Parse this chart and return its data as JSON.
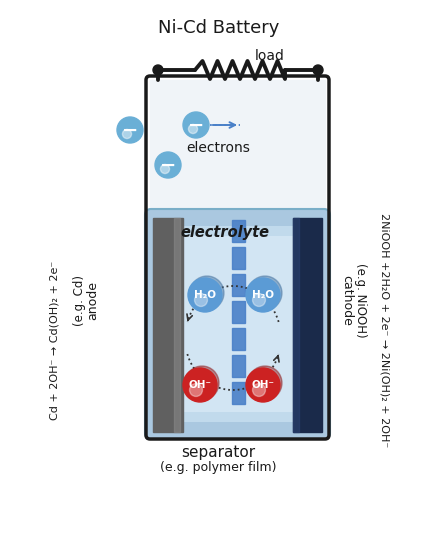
{
  "title": "Ni-Cd Battery",
  "title_fontsize": 13,
  "bg_color": "#ffffff",
  "circuit_color": "#1a1a1a",
  "box_edge_color": "#1a1a1a",
  "box_upper_fill": "#f0f4f8",
  "electrolyte_fill": "#aac8e0",
  "electrolyte_inner": "#c8dff0",
  "separator_color": "#4a80c8",
  "anode_color": "#606060",
  "anode_shade": "#888888",
  "cathode_color": "#1a2a4a",
  "cathode_shade": "#2a4070",
  "electron_color": "#6aafd6",
  "h2o_color": "#5b9bd5",
  "h2o_shadow": "#3a6a9a",
  "oh_color": "#cc2222",
  "oh_shadow": "#8a1010",
  "arrow_color": "#333333",
  "dotted_color": "#4a80c8",
  "load_text": "load",
  "electrons_text": "electrons",
  "electrolyte_text": "electrolyte",
  "separator_text": "separator",
  "separator_sub": "(e.g. polymer film)",
  "anode_label": "anode",
  "anode_sub": "(e.g. Cd)",
  "cathode_label": "cathode",
  "cathode_sub": "(e.g. NiOOH)",
  "left_eq": "Cd + 2OH⁻ → Cd(OH)₂ + 2e⁻",
  "right_eq": "2NiOOH +2H₂O + 2e⁻ → 2Ni(OH)₂ + 2OH⁻"
}
